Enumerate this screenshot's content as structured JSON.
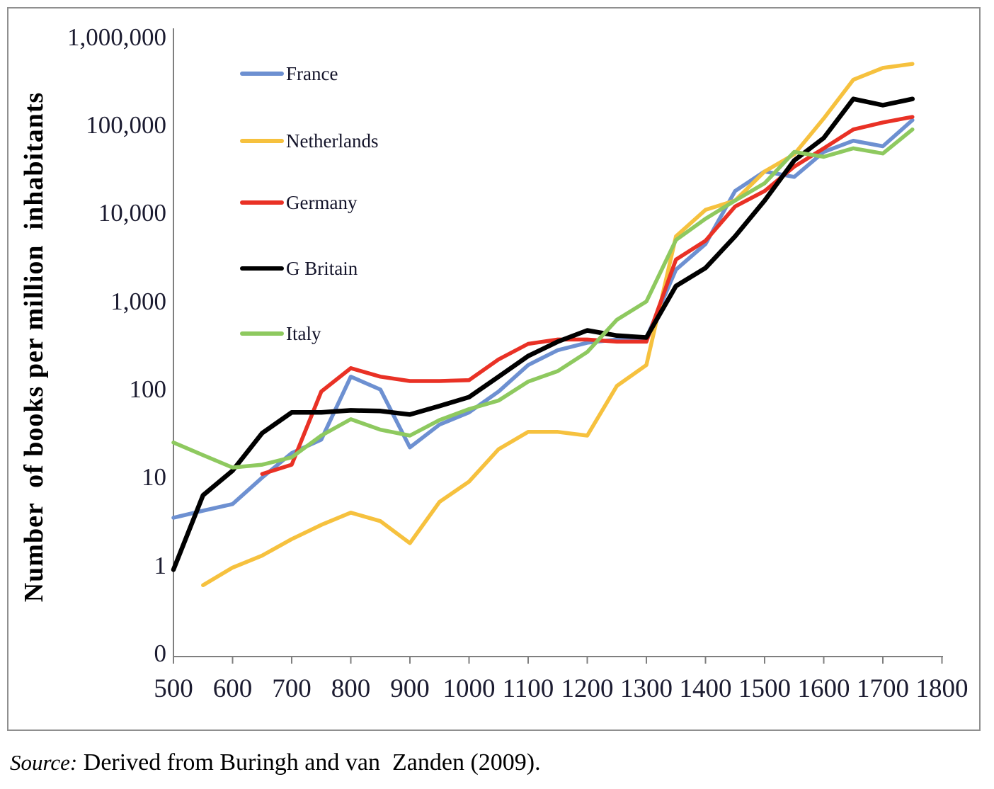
{
  "figure": {
    "y_axis_title": "Number  of books per million  inhabitants",
    "source_label": "Source:",
    "source_text": " Derived from Buringh and van  Zanden (2009)."
  },
  "chart_data": {
    "type": "line",
    "title": "",
    "xlabel": "",
    "ylabel": "Number of books per million inhabitants",
    "y_scale": "log",
    "x_range": [
      500,
      1800
    ],
    "y_range_log": [
      0.1,
      1000000
    ],
    "grid": false,
    "legend_position": "upper-left-inside",
    "x_ticks": [
      500,
      600,
      700,
      800,
      900,
      1000,
      1100,
      1200,
      1300,
      1400,
      1500,
      1600,
      1700,
      1800
    ],
    "y_ticks": [
      {
        "label": "1,000,000",
        "v": 1000000
      },
      {
        "label": "100,000",
        "v": 100000
      },
      {
        "label": "10,000",
        "v": 10000
      },
      {
        "label": "1,000",
        "v": 1000
      },
      {
        "label": "100",
        "v": 100
      },
      {
        "label": "10",
        "v": 10
      },
      {
        "label": "1",
        "v": 1
      },
      {
        "label": "0",
        "v": 0.1
      }
    ],
    "series": [
      {
        "name": "France",
        "color": "#6d90d1",
        "points": [
          [
            500,
            3.5
          ],
          [
            550,
            4.2
          ],
          [
            600,
            5
          ],
          [
            650,
            10
          ],
          [
            700,
            19
          ],
          [
            750,
            27
          ],
          [
            800,
            140
          ],
          [
            850,
            100
          ],
          [
            900,
            22
          ],
          [
            950,
            40
          ],
          [
            1000,
            55
          ],
          [
            1050,
            95
          ],
          [
            1100,
            190
          ],
          [
            1150,
            280
          ],
          [
            1200,
            340
          ],
          [
            1250,
            370
          ],
          [
            1300,
            385
          ],
          [
            1350,
            2300
          ],
          [
            1400,
            4500
          ],
          [
            1450,
            18000
          ],
          [
            1500,
            30000
          ],
          [
            1550,
            26000
          ],
          [
            1600,
            50000
          ],
          [
            1650,
            67000
          ],
          [
            1700,
            58000
          ],
          [
            1750,
            115000
          ]
        ]
      },
      {
        "name": "Netherlands",
        "color": "#f6c13e",
        "points": [
          [
            550,
            0.6
          ],
          [
            600,
            0.95
          ],
          [
            650,
            1.3
          ],
          [
            700,
            2
          ],
          [
            750,
            2.9
          ],
          [
            800,
            4
          ],
          [
            850,
            3.2
          ],
          [
            900,
            1.8
          ],
          [
            950,
            5.3
          ],
          [
            1000,
            9
          ],
          [
            1050,
            21
          ],
          [
            1100,
            33
          ],
          [
            1150,
            33
          ],
          [
            1200,
            30
          ],
          [
            1250,
            110
          ],
          [
            1300,
            190
          ],
          [
            1350,
            5500
          ],
          [
            1400,
            11000
          ],
          [
            1450,
            14000
          ],
          [
            1500,
            30000
          ],
          [
            1550,
            47000
          ],
          [
            1600,
            120000
          ],
          [
            1650,
            330000
          ],
          [
            1700,
            450000
          ],
          [
            1750,
            500000
          ]
        ]
      },
      {
        "name": "Germany",
        "color": "#e93125",
        "points": [
          [
            650,
            11
          ],
          [
            700,
            14
          ],
          [
            750,
            95
          ],
          [
            800,
            175
          ],
          [
            850,
            140
          ],
          [
            900,
            125
          ],
          [
            950,
            125
          ],
          [
            1000,
            128
          ],
          [
            1050,
            220
          ],
          [
            1100,
            330
          ],
          [
            1150,
            370
          ],
          [
            1200,
            370
          ],
          [
            1250,
            350
          ],
          [
            1300,
            350
          ],
          [
            1350,
            3000
          ],
          [
            1400,
            4900
          ],
          [
            1450,
            12000
          ],
          [
            1500,
            18000
          ],
          [
            1550,
            34000
          ],
          [
            1600,
            55000
          ],
          [
            1650,
            90000
          ],
          [
            1700,
            108000
          ],
          [
            1750,
            125000
          ]
        ]
      },
      {
        "name": "G Britain",
        "color": "#000000",
        "points": [
          [
            500,
            0.9
          ],
          [
            550,
            6.3
          ],
          [
            600,
            12
          ],
          [
            650,
            32
          ],
          [
            700,
            55
          ],
          [
            750,
            55
          ],
          [
            800,
            58
          ],
          [
            850,
            57
          ],
          [
            900,
            52
          ],
          [
            950,
            65
          ],
          [
            1000,
            82
          ],
          [
            1050,
            140
          ],
          [
            1100,
            240
          ],
          [
            1150,
            350
          ],
          [
            1200,
            470
          ],
          [
            1250,
            410
          ],
          [
            1300,
            390
          ],
          [
            1350,
            1500
          ],
          [
            1400,
            2400
          ],
          [
            1450,
            5500
          ],
          [
            1500,
            14000
          ],
          [
            1550,
            40000
          ],
          [
            1600,
            72000
          ],
          [
            1650,
            200000
          ],
          [
            1700,
            170000
          ],
          [
            1750,
            200000
          ]
        ]
      },
      {
        "name": "Italy",
        "color": "#8ec95f",
        "points": [
          [
            500,
            25
          ],
          [
            550,
            18
          ],
          [
            600,
            13
          ],
          [
            650,
            14
          ],
          [
            700,
            17
          ],
          [
            750,
            30
          ],
          [
            800,
            46
          ],
          [
            850,
            35
          ],
          [
            900,
            30
          ],
          [
            950,
            45
          ],
          [
            1000,
            60
          ],
          [
            1050,
            75
          ],
          [
            1100,
            123
          ],
          [
            1150,
            162
          ],
          [
            1200,
            267
          ],
          [
            1250,
            620
          ],
          [
            1300,
            1000
          ],
          [
            1350,
            5000
          ],
          [
            1400,
            8700
          ],
          [
            1450,
            14000
          ],
          [
            1500,
            22000
          ],
          [
            1550,
            50000
          ],
          [
            1600,
            44000
          ],
          [
            1650,
            55000
          ],
          [
            1700,
            48000
          ],
          [
            1750,
            90000
          ]
        ]
      }
    ]
  }
}
